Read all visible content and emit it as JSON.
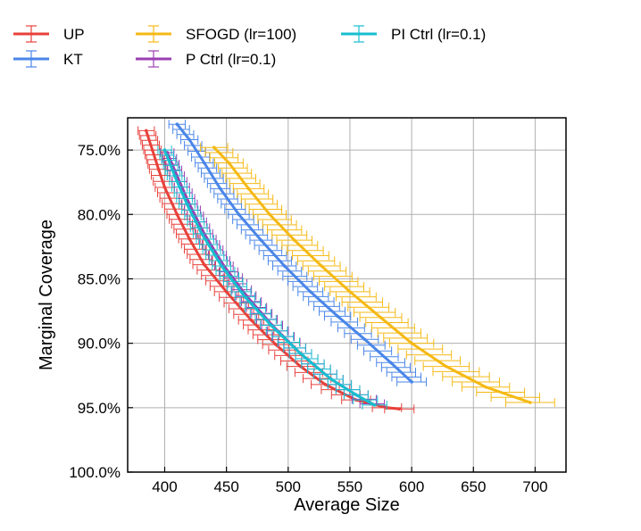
{
  "chart_data": {
    "type": "line",
    "title": "",
    "xlabel": "Average Size",
    "ylabel": "Marginal Coverage",
    "xlim": [
      370,
      725
    ],
    "ylim": [
      72.5,
      100
    ],
    "y_inverted": true,
    "grid": true,
    "x_ticks": [
      400,
      450,
      500,
      550,
      600,
      650,
      700
    ],
    "x_tick_labels": [
      "400",
      "450",
      "500",
      "550",
      "600",
      "650",
      "700"
    ],
    "y_ticks": [
      75,
      80,
      85,
      90,
      95,
      100
    ],
    "y_tick_labels": [
      "75.0%",
      "80.0%",
      "85.0%",
      "90.0%",
      "95.0%",
      "100.0%"
    ],
    "legend_position": "top-left, outside plot",
    "series": [
      {
        "name": "UP",
        "color": "#e8413b",
        "points": [
          [
            385,
            73.5
          ],
          [
            390,
            75.0
          ],
          [
            395,
            76.5
          ],
          [
            400,
            77.9
          ],
          [
            410,
            80.0
          ],
          [
            420,
            81.9
          ],
          [
            432,
            83.9
          ],
          [
            450,
            86.0
          ],
          [
            470,
            88.2
          ],
          [
            490,
            90.1
          ],
          [
            510,
            91.8
          ],
          [
            530,
            93.2
          ],
          [
            555,
            94.4
          ],
          [
            580,
            95.0
          ],
          [
            590,
            95.1
          ]
        ],
        "x_error": 12
      },
      {
        "name": "KT",
        "color": "#4a86e8",
        "points": [
          [
            410,
            73.0
          ],
          [
            420,
            74.2
          ],
          [
            432,
            76.0
          ],
          [
            445,
            78.0
          ],
          [
            460,
            80.0
          ],
          [
            478,
            82.0
          ],
          [
            497,
            84.0
          ],
          [
            518,
            86.0
          ],
          [
            540,
            87.9
          ],
          [
            562,
            89.7
          ],
          [
            583,
            91.5
          ],
          [
            600,
            93.0
          ]
        ],
        "x_error": 12
      },
      {
        "name": "SFOGD (lr=100)",
        "color": "#f5b915",
        "points": [
          [
            440,
            74.8
          ],
          [
            452,
            76.0
          ],
          [
            468,
            78.0
          ],
          [
            485,
            80.0
          ],
          [
            505,
            82.0
          ],
          [
            527,
            84.0
          ],
          [
            550,
            86.0
          ],
          [
            575,
            88.0
          ],
          [
            600,
            90.0
          ],
          [
            628,
            91.8
          ],
          [
            660,
            93.4
          ],
          [
            696,
            94.6
          ]
        ],
        "x_error": 20
      },
      {
        "name": "P Ctrl (lr=0.1)",
        "color": "#9b3fb3",
        "points": [
          [
            402,
            75.2
          ],
          [
            410,
            77.0
          ],
          [
            420,
            79.2
          ],
          [
            432,
            81.5
          ],
          [
            448,
            84.0
          ],
          [
            466,
            86.3
          ],
          [
            487,
            88.6
          ],
          [
            510,
            90.8
          ],
          [
            535,
            92.8
          ],
          [
            555,
            94.0
          ],
          [
            568,
            94.7
          ]
        ],
        "x_error": 10
      },
      {
        "name": "PI Ctrl (lr=0.1)",
        "color": "#17becf",
        "points": [
          [
            400,
            75.0
          ],
          [
            408,
            77.0
          ],
          [
            418,
            79.2
          ],
          [
            430,
            81.5
          ],
          [
            446,
            84.0
          ],
          [
            465,
            86.4
          ],
          [
            486,
            88.6
          ],
          [
            510,
            90.8
          ],
          [
            535,
            92.8
          ],
          [
            555,
            94.0
          ],
          [
            570,
            94.8
          ]
        ],
        "x_error": 10
      }
    ]
  }
}
